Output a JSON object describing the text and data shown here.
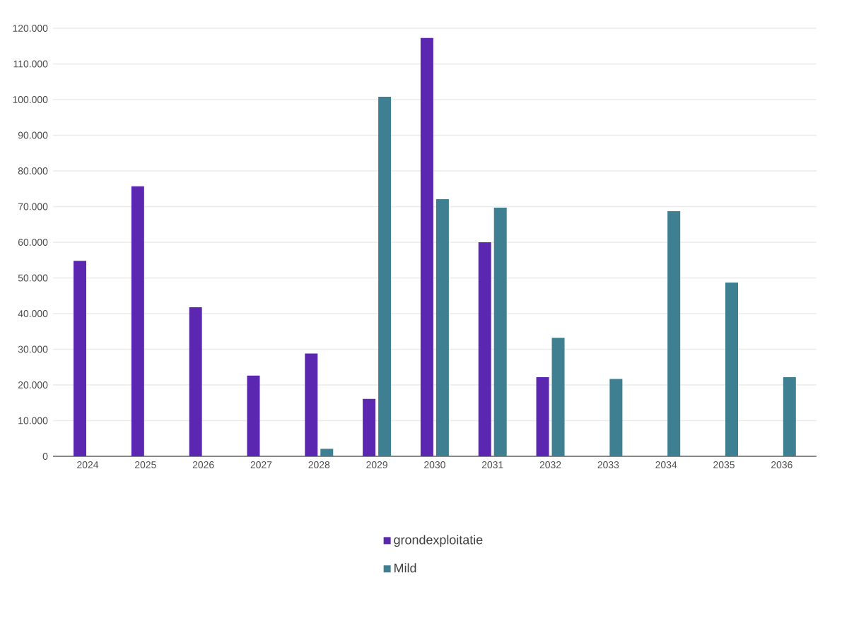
{
  "chart_data": {
    "type": "bar",
    "categories": [
      "2024",
      "2025",
      "2026",
      "2027",
      "2028",
      "2029",
      "2030",
      "2031",
      "2032",
      "2033",
      "2034",
      "2035",
      "2036"
    ],
    "series": [
      {
        "name": "grondexploitatie",
        "color": "#5b27b0",
        "values": [
          54800,
          75700,
          41800,
          22600,
          28800,
          16100,
          117300,
          60000,
          22200,
          null,
          null,
          null,
          null
        ]
      },
      {
        "name": "Mild",
        "color": "#3e7f91",
        "values": [
          null,
          null,
          null,
          null,
          2100,
          100800,
          72100,
          69700,
          33200,
          21700,
          68700,
          48700,
          22200
        ]
      }
    ],
    "ylim": [
      0,
      120000
    ],
    "yticks": [
      {
        "value": 0,
        "label": "0"
      },
      {
        "value": 10000,
        "label": "10.000"
      },
      {
        "value": 20000,
        "label": "20.000"
      },
      {
        "value": 30000,
        "label": "30.000"
      },
      {
        "value": 40000,
        "label": "40.000"
      },
      {
        "value": 50000,
        "label": "50.000"
      },
      {
        "value": 60000,
        "label": "60.000"
      },
      {
        "value": 70000,
        "label": "70.000"
      },
      {
        "value": 80000,
        "label": "80.000"
      },
      {
        "value": 90000,
        "label": "90.000"
      },
      {
        "value": 100000,
        "label": "100.000"
      },
      {
        "value": 110000,
        "label": "110.000"
      },
      {
        "value": 120000,
        "label": "120.000"
      }
    ],
    "grid": "y",
    "legend": "bottom"
  }
}
